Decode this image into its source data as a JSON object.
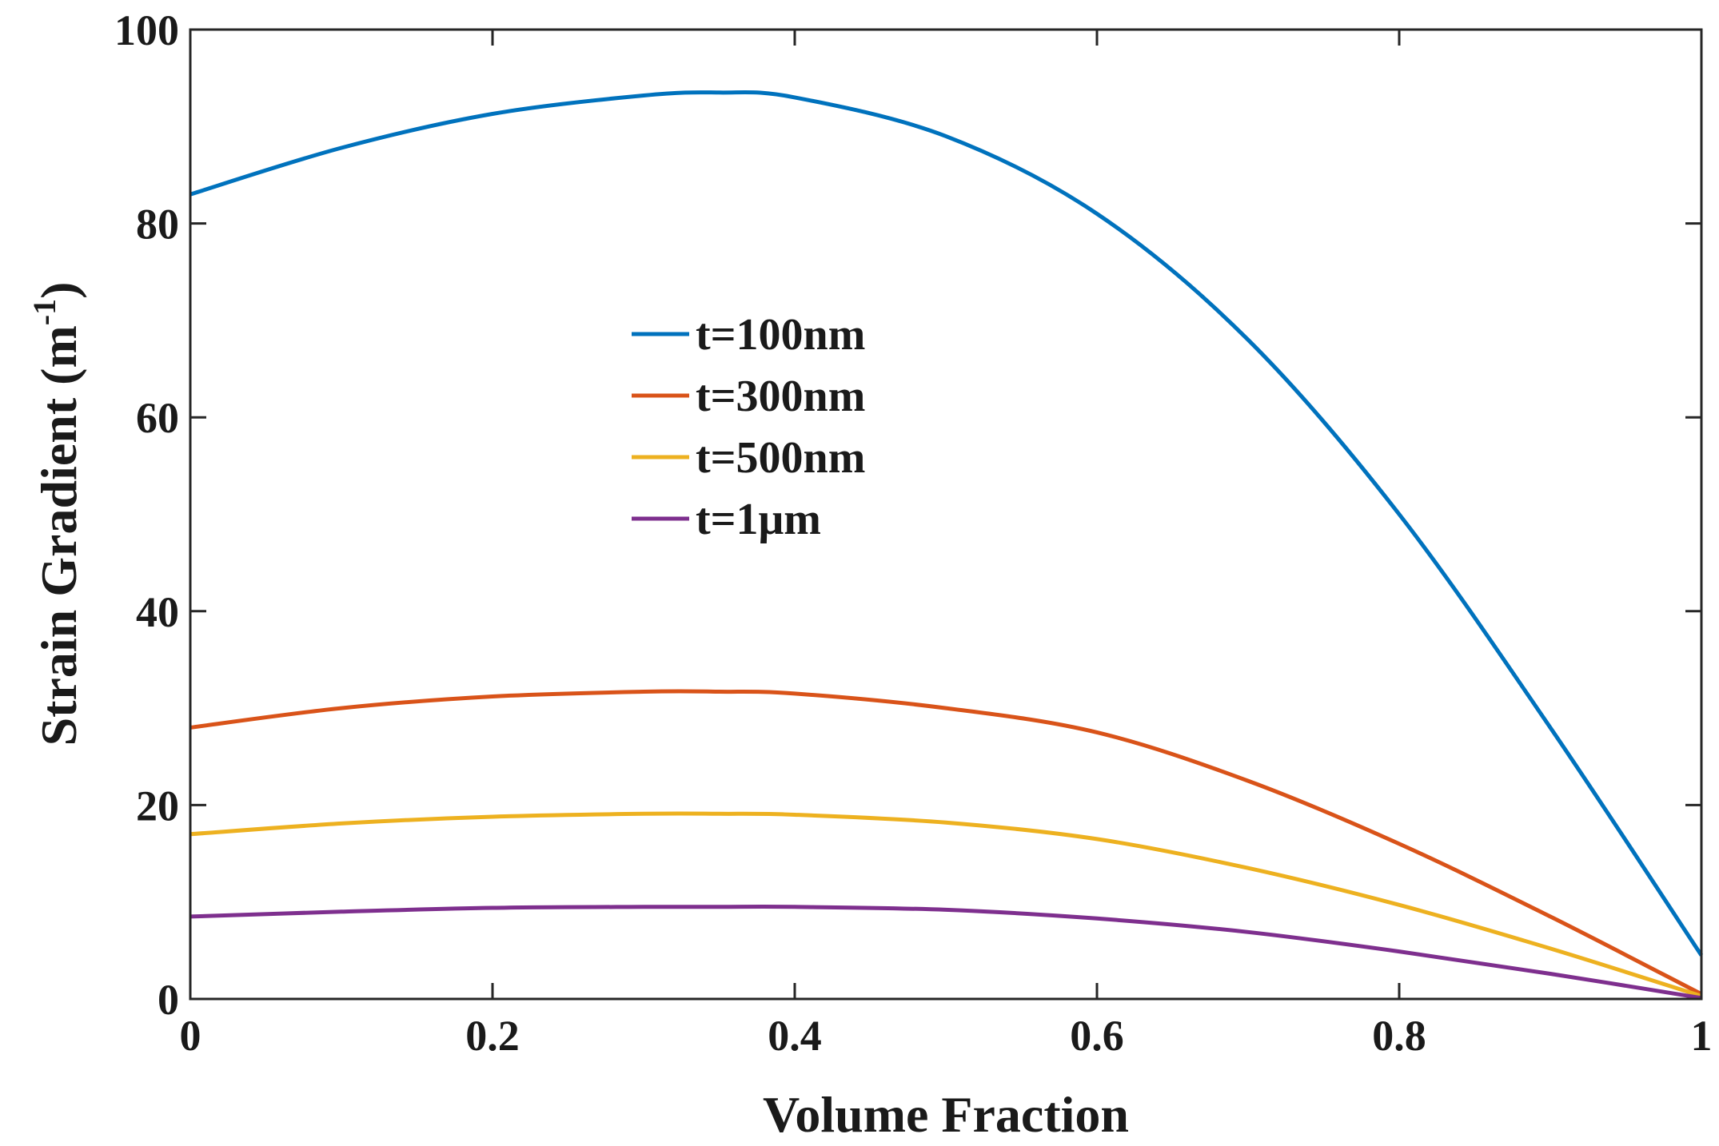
{
  "chart_data": {
    "type": "line",
    "title": "",
    "xlabel": "Volume Fraction",
    "ylabel_main": "Strain Gradient (m",
    "ylabel_sup": "-1",
    "ylabel_close": ")",
    "xlim": [
      0,
      1
    ],
    "ylim": [
      0,
      100
    ],
    "xticks": [
      0,
      0.2,
      0.4,
      0.6,
      0.8,
      1
    ],
    "xtick_labels": [
      "0",
      "0.2",
      "0.4",
      "0.6",
      "0.8",
      "1"
    ],
    "yticks": [
      0,
      20,
      40,
      60,
      80,
      100
    ],
    "ytick_labels": [
      "0",
      "20",
      "40",
      "60",
      "80",
      "100"
    ],
    "grid": false,
    "legend_position": "center-left",
    "x": [
      0,
      0.1,
      0.2,
      0.3,
      0.35,
      0.4,
      0.5,
      0.6,
      0.7,
      0.8,
      0.9,
      1.0
    ],
    "series": [
      {
        "name": "t=100nm",
        "color": "#0072BD",
        "values": [
          83.0,
          87.8,
          91.3,
          93.2,
          93.5,
          93.0,
          89.0,
          81.0,
          68.0,
          50.0,
          28.0,
          4.5
        ]
      },
      {
        "name": "t=300nm",
        "color": "#D95319",
        "values": [
          28.0,
          30.0,
          31.2,
          31.7,
          31.7,
          31.5,
          30.0,
          27.5,
          22.5,
          16.0,
          8.5,
          0.5
        ]
      },
      {
        "name": "t=500nm",
        "color": "#EDB120",
        "values": [
          17.0,
          18.1,
          18.8,
          19.1,
          19.1,
          19.0,
          18.2,
          16.5,
          13.5,
          9.7,
          5.2,
          0.3
        ]
      },
      {
        "name": "t=1μm",
        "color": "#7E2F8E",
        "values": [
          8.5,
          9.0,
          9.4,
          9.5,
          9.5,
          9.5,
          9.2,
          8.3,
          6.9,
          4.9,
          2.6,
          0.1
        ]
      }
    ]
  }
}
